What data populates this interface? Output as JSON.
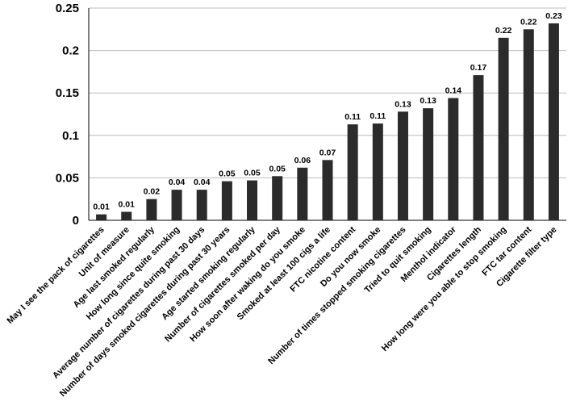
{
  "chart_data": {
    "type": "bar",
    "title": "",
    "xlabel": "",
    "ylabel": "",
    "ylim": [
      0,
      0.25
    ],
    "yticks": [
      "0",
      "0.05",
      "0.1",
      "0.15",
      "0.2",
      "0.25"
    ],
    "grid": true,
    "bar_color": "#2b2b2b",
    "categories": [
      "May I see the pack of cigarettes",
      "Unit of measure",
      "Age last smoked regularly",
      "How long since quite smoking",
      "Average number of cigarettes during past 30 days",
      "Number of days smoked cigarettes during past 30 years",
      "Age started smoking regularly",
      "Number of cigarettes smoked per day",
      "How soon after waking do you smoke",
      "Smoked at least 100 cigs a life",
      "FTC nicotine content",
      "Do you now smoke",
      "Number of times stopped smoking cigarettes",
      "Tried to quit smoking",
      "Menthol indicator",
      "Cigarettes length",
      "How long were you able to stop smoking",
      "FTC tar content",
      "Cigarette filter type"
    ],
    "values": [
      0.007,
      0.01,
      0.025,
      0.036,
      0.036,
      0.046,
      0.047,
      0.052,
      0.062,
      0.071,
      0.113,
      0.114,
      0.128,
      0.132,
      0.144,
      0.171,
      0.215,
      0.225,
      0.232
    ],
    "data_labels": [
      "0.01",
      "0.01",
      "0.02",
      "0.04",
      "0.04",
      "0.05",
      "0.05",
      "0.05",
      "0.06",
      "0.07",
      "0.11",
      "0.11",
      "0.13",
      "0.13",
      "0.14",
      "0.17",
      "0.22",
      "0.22",
      "0.23"
    ]
  }
}
